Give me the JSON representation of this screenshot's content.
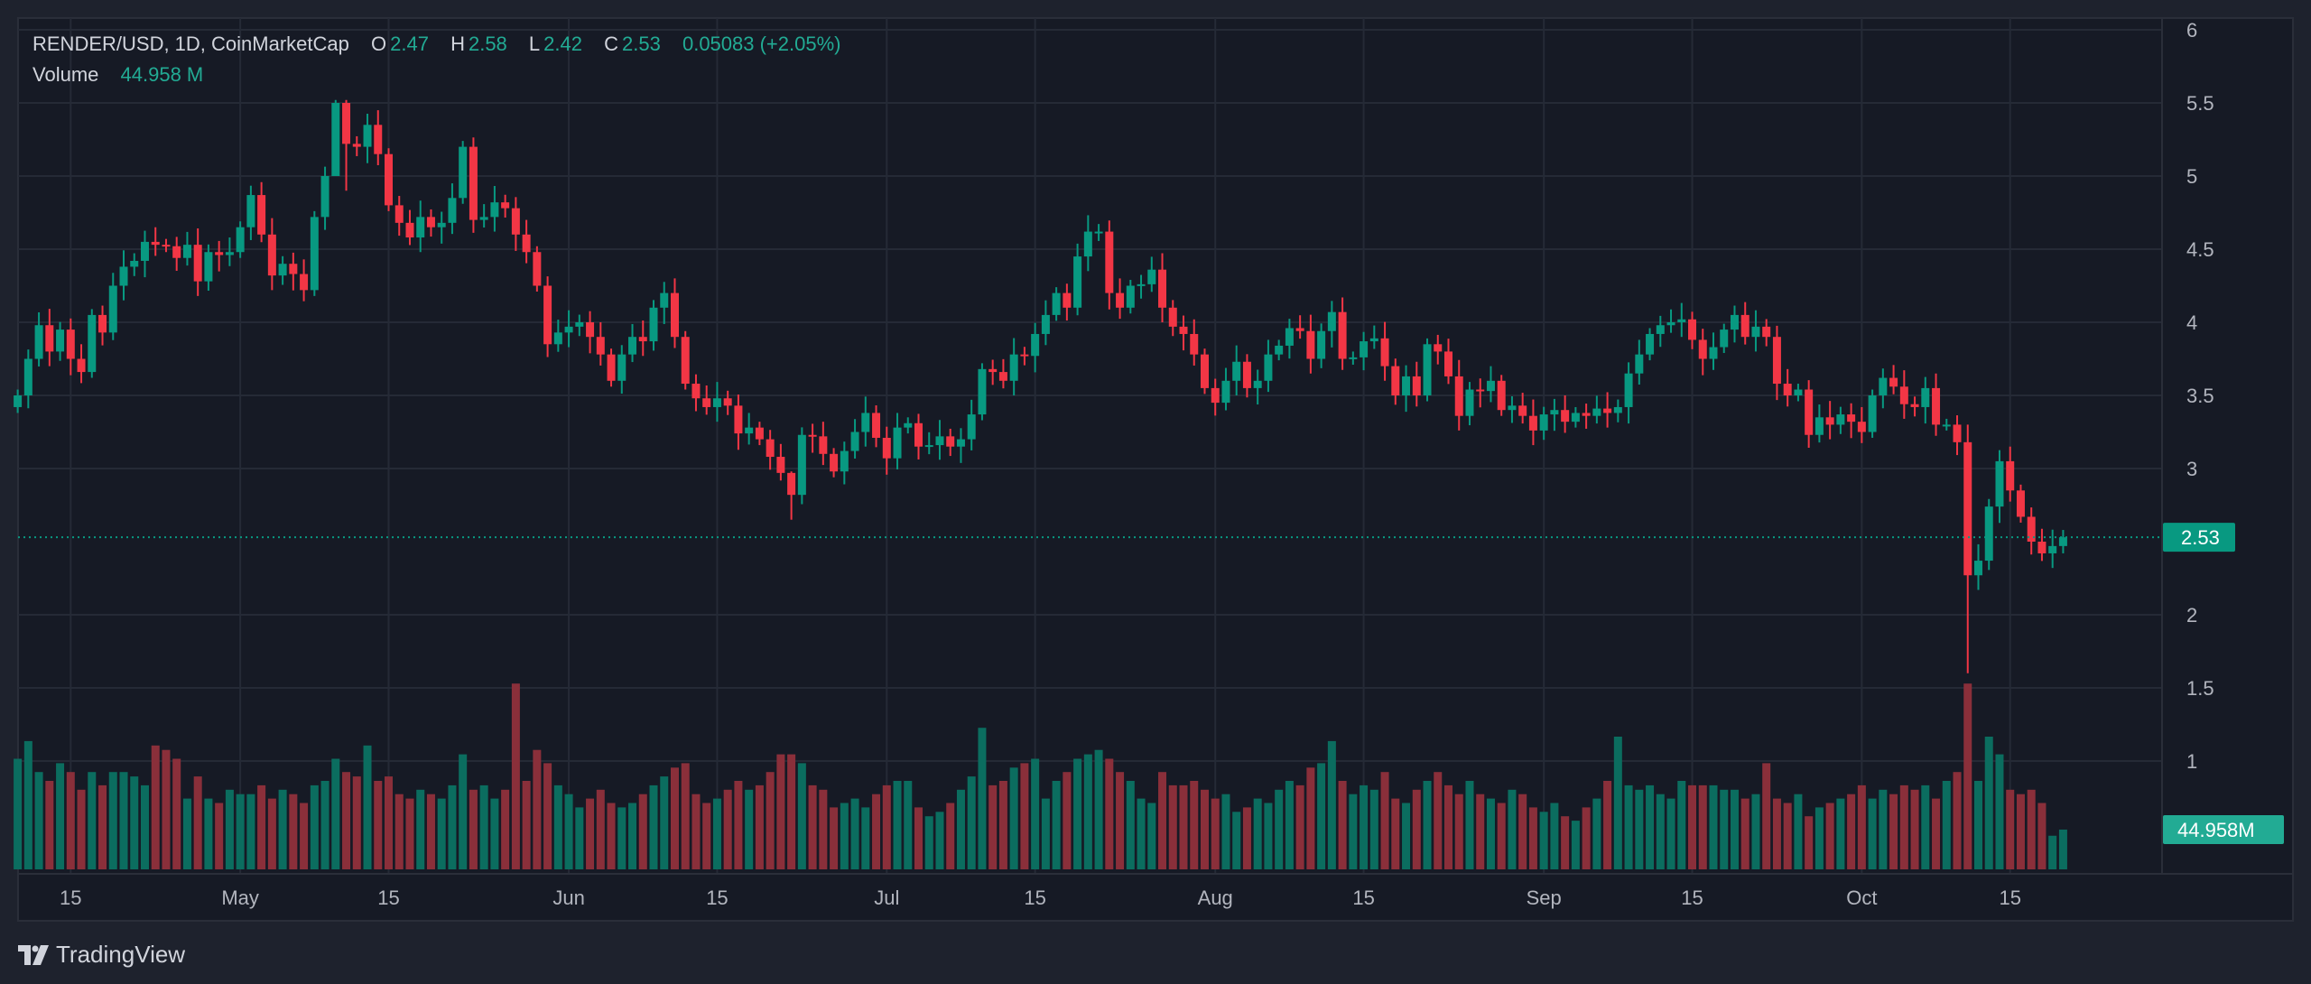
{
  "header": {
    "symbol": "RENDER/USD, 1D, CoinMarketCap",
    "o_label": "O",
    "o_value": "2.47",
    "h_label": "H",
    "h_value": "2.58",
    "l_label": "L",
    "l_value": "2.42",
    "c_label": "C",
    "c_value": "2.53",
    "change": "0.05083 (+2.05%)",
    "volume_label": "Volume",
    "volume_value": "44.958 M"
  },
  "footer": {
    "brand": "TradingView"
  },
  "colors": {
    "up": "#089981",
    "down": "#f23645",
    "up_volume": "#0b6d5f",
    "down_volume": "#8a2f3a",
    "grid": "#252a36",
    "background": "#161a25"
  },
  "chart_data": {
    "type": "candlestick",
    "title": "RENDER/USD, 1D, CoinMarketCap",
    "first_open": 3.42,
    "close": [
      3.5,
      3.75,
      3.98,
      3.8,
      3.95,
      3.75,
      3.66,
      4.05,
      3.93,
      4.25,
      4.38,
      4.42,
      4.55,
      4.53,
      4.52,
      4.44,
      4.53,
      4.28,
      4.48,
      4.46,
      4.48,
      4.65,
      4.87,
      4.6,
      4.32,
      4.4,
      4.33,
      4.22,
      4.72,
      5.0,
      5.5,
      5.22,
      5.2,
      5.35,
      5.15,
      4.8,
      4.68,
      4.58,
      4.72,
      4.65,
      4.68,
      4.85,
      5.2,
      4.7,
      4.72,
      4.82,
      4.78,
      4.6,
      4.48,
      4.25,
      3.85,
      3.93,
      3.97,
      4.0,
      3.9,
      3.78,
      3.6,
      3.78,
      3.9,
      3.87,
      4.1,
      4.2,
      3.9,
      3.58,
      3.48,
      3.42,
      3.48,
      3.43,
      3.24,
      3.28,
      3.2,
      3.08,
      2.97,
      2.82,
      3.23,
      3.22,
      3.1,
      2.98,
      3.12,
      3.25,
      3.38,
      3.21,
      3.07,
      3.28,
      3.31,
      3.15,
      3.16,
      3.22,
      3.15,
      3.2,
      3.37,
      3.68,
      3.66,
      3.6,
      3.78,
      3.77,
      3.92,
      4.05,
      4.2,
      4.1,
      4.45,
      4.62,
      4.62,
      4.2,
      4.1,
      4.25,
      4.26,
      4.36,
      4.1,
      3.97,
      3.92,
      3.78,
      3.55,
      3.45,
      3.6,
      3.73,
      3.55,
      3.6,
      3.78,
      3.84,
      3.96,
      3.94,
      3.75,
      3.94,
      4.07,
      3.75,
      3.76,
      3.87,
      3.89,
      3.7,
      3.5,
      3.63,
      3.5,
      3.85,
      3.8,
      3.63,
      3.36,
      3.54,
      3.53,
      3.6,
      3.4,
      3.43,
      3.36,
      3.26,
      3.37,
      3.4,
      3.32,
      3.38,
      3.36,
      3.41,
      3.38,
      3.42,
      3.65,
      3.78,
      3.92,
      3.98,
      4.0,
      4.02,
      3.88,
      3.75,
      3.83,
      3.95,
      4.05,
      3.9,
      3.97,
      3.9,
      3.58,
      3.5,
      3.54,
      3.23,
      3.35,
      3.3,
      3.37,
      3.32,
      3.25,
      3.5,
      3.62,
      3.56,
      3.44,
      3.42,
      3.55,
      3.3,
      3.3,
      3.18,
      2.27,
      2.37,
      2.74,
      3.05,
      2.85,
      2.67,
      2.5,
      2.42,
      2.47,
      2.53
    ],
    "wick_overrides": {
      "30": [
        5.52,
        5.1
      ],
      "31": [
        5.52,
        4.9
      ],
      "73": [
        2.98,
        2.65
      ],
      "184": [
        3.3,
        1.6
      ],
      "193": [
        2.58,
        2.42
      ]
    },
    "volume_millions": [
      125,
      145,
      110,
      100,
      120,
      110,
      90,
      110,
      95,
      110,
      110,
      105,
      95,
      140,
      135,
      125,
      80,
      105,
      80,
      75,
      90,
      85,
      85,
      95,
      80,
      90,
      85,
      75,
      95,
      100,
      125,
      110,
      105,
      140,
      100,
      105,
      85,
      80,
      90,
      85,
      80,
      95,
      130,
      90,
      95,
      80,
      90,
      210,
      100,
      135,
      120,
      95,
      85,
      70,
      80,
      90,
      75,
      70,
      75,
      85,
      95,
      105,
      115,
      120,
      85,
      75,
      80,
      90,
      100,
      90,
      95,
      110,
      130,
      130,
      120,
      95,
      90,
      70,
      75,
      80,
      70,
      85,
      95,
      100,
      100,
      70,
      60,
      65,
      75,
      90,
      105,
      160,
      95,
      100,
      115,
      120,
      125,
      80,
      100,
      110,
      125,
      130,
      135,
      125,
      110,
      100,
      80,
      75,
      110,
      95,
      95,
      100,
      90,
      80,
      85,
      65,
      70,
      80,
      75,
      90,
      100,
      95,
      115,
      120,
      145,
      100,
      85,
      95,
      90,
      110,
      80,
      75,
      90,
      100,
      110,
      95,
      85,
      100,
      85,
      80,
      75,
      90,
      85,
      70,
      65,
      75,
      60,
      55,
      70,
      80,
      100,
      150,
      95,
      90,
      95,
      85,
      80,
      100,
      95,
      95,
      95,
      90,
      90,
      80,
      85,
      120,
      80,
      75,
      85,
      60,
      70,
      75,
      80,
      85,
      95,
      80,
      90,
      85,
      95,
      90,
      95,
      80,
      100,
      110,
      210,
      100,
      150,
      130,
      90,
      85,
      90,
      75,
      38,
      44.958
    ],
    "y_ticks": [
      "6",
      "5.5",
      "5",
      "4.5",
      "4",
      "3.5",
      "3",
      "2",
      "1.5",
      "1"
    ],
    "ylim": [
      0.65,
      6.05
    ],
    "x_ticks": [
      {
        "label": "15",
        "index": 5
      },
      {
        "label": "May",
        "index": 21
      },
      {
        "label": "15",
        "index": 35
      },
      {
        "label": "Jun",
        "index": 52
      },
      {
        "label": "15",
        "index": 66
      },
      {
        "label": "Jul",
        "index": 82
      },
      {
        "label": "15",
        "index": 96
      },
      {
        "label": "Aug",
        "index": 113
      },
      {
        "label": "15",
        "index": 127
      },
      {
        "label": "Sep",
        "index": 144
      },
      {
        "label": "15",
        "index": 158
      },
      {
        "label": "Oct",
        "index": 174
      },
      {
        "label": "15",
        "index": 188
      }
    ],
    "last_price_label": "2.53",
    "last_volume_label": "44.958M",
    "grid": true
  }
}
